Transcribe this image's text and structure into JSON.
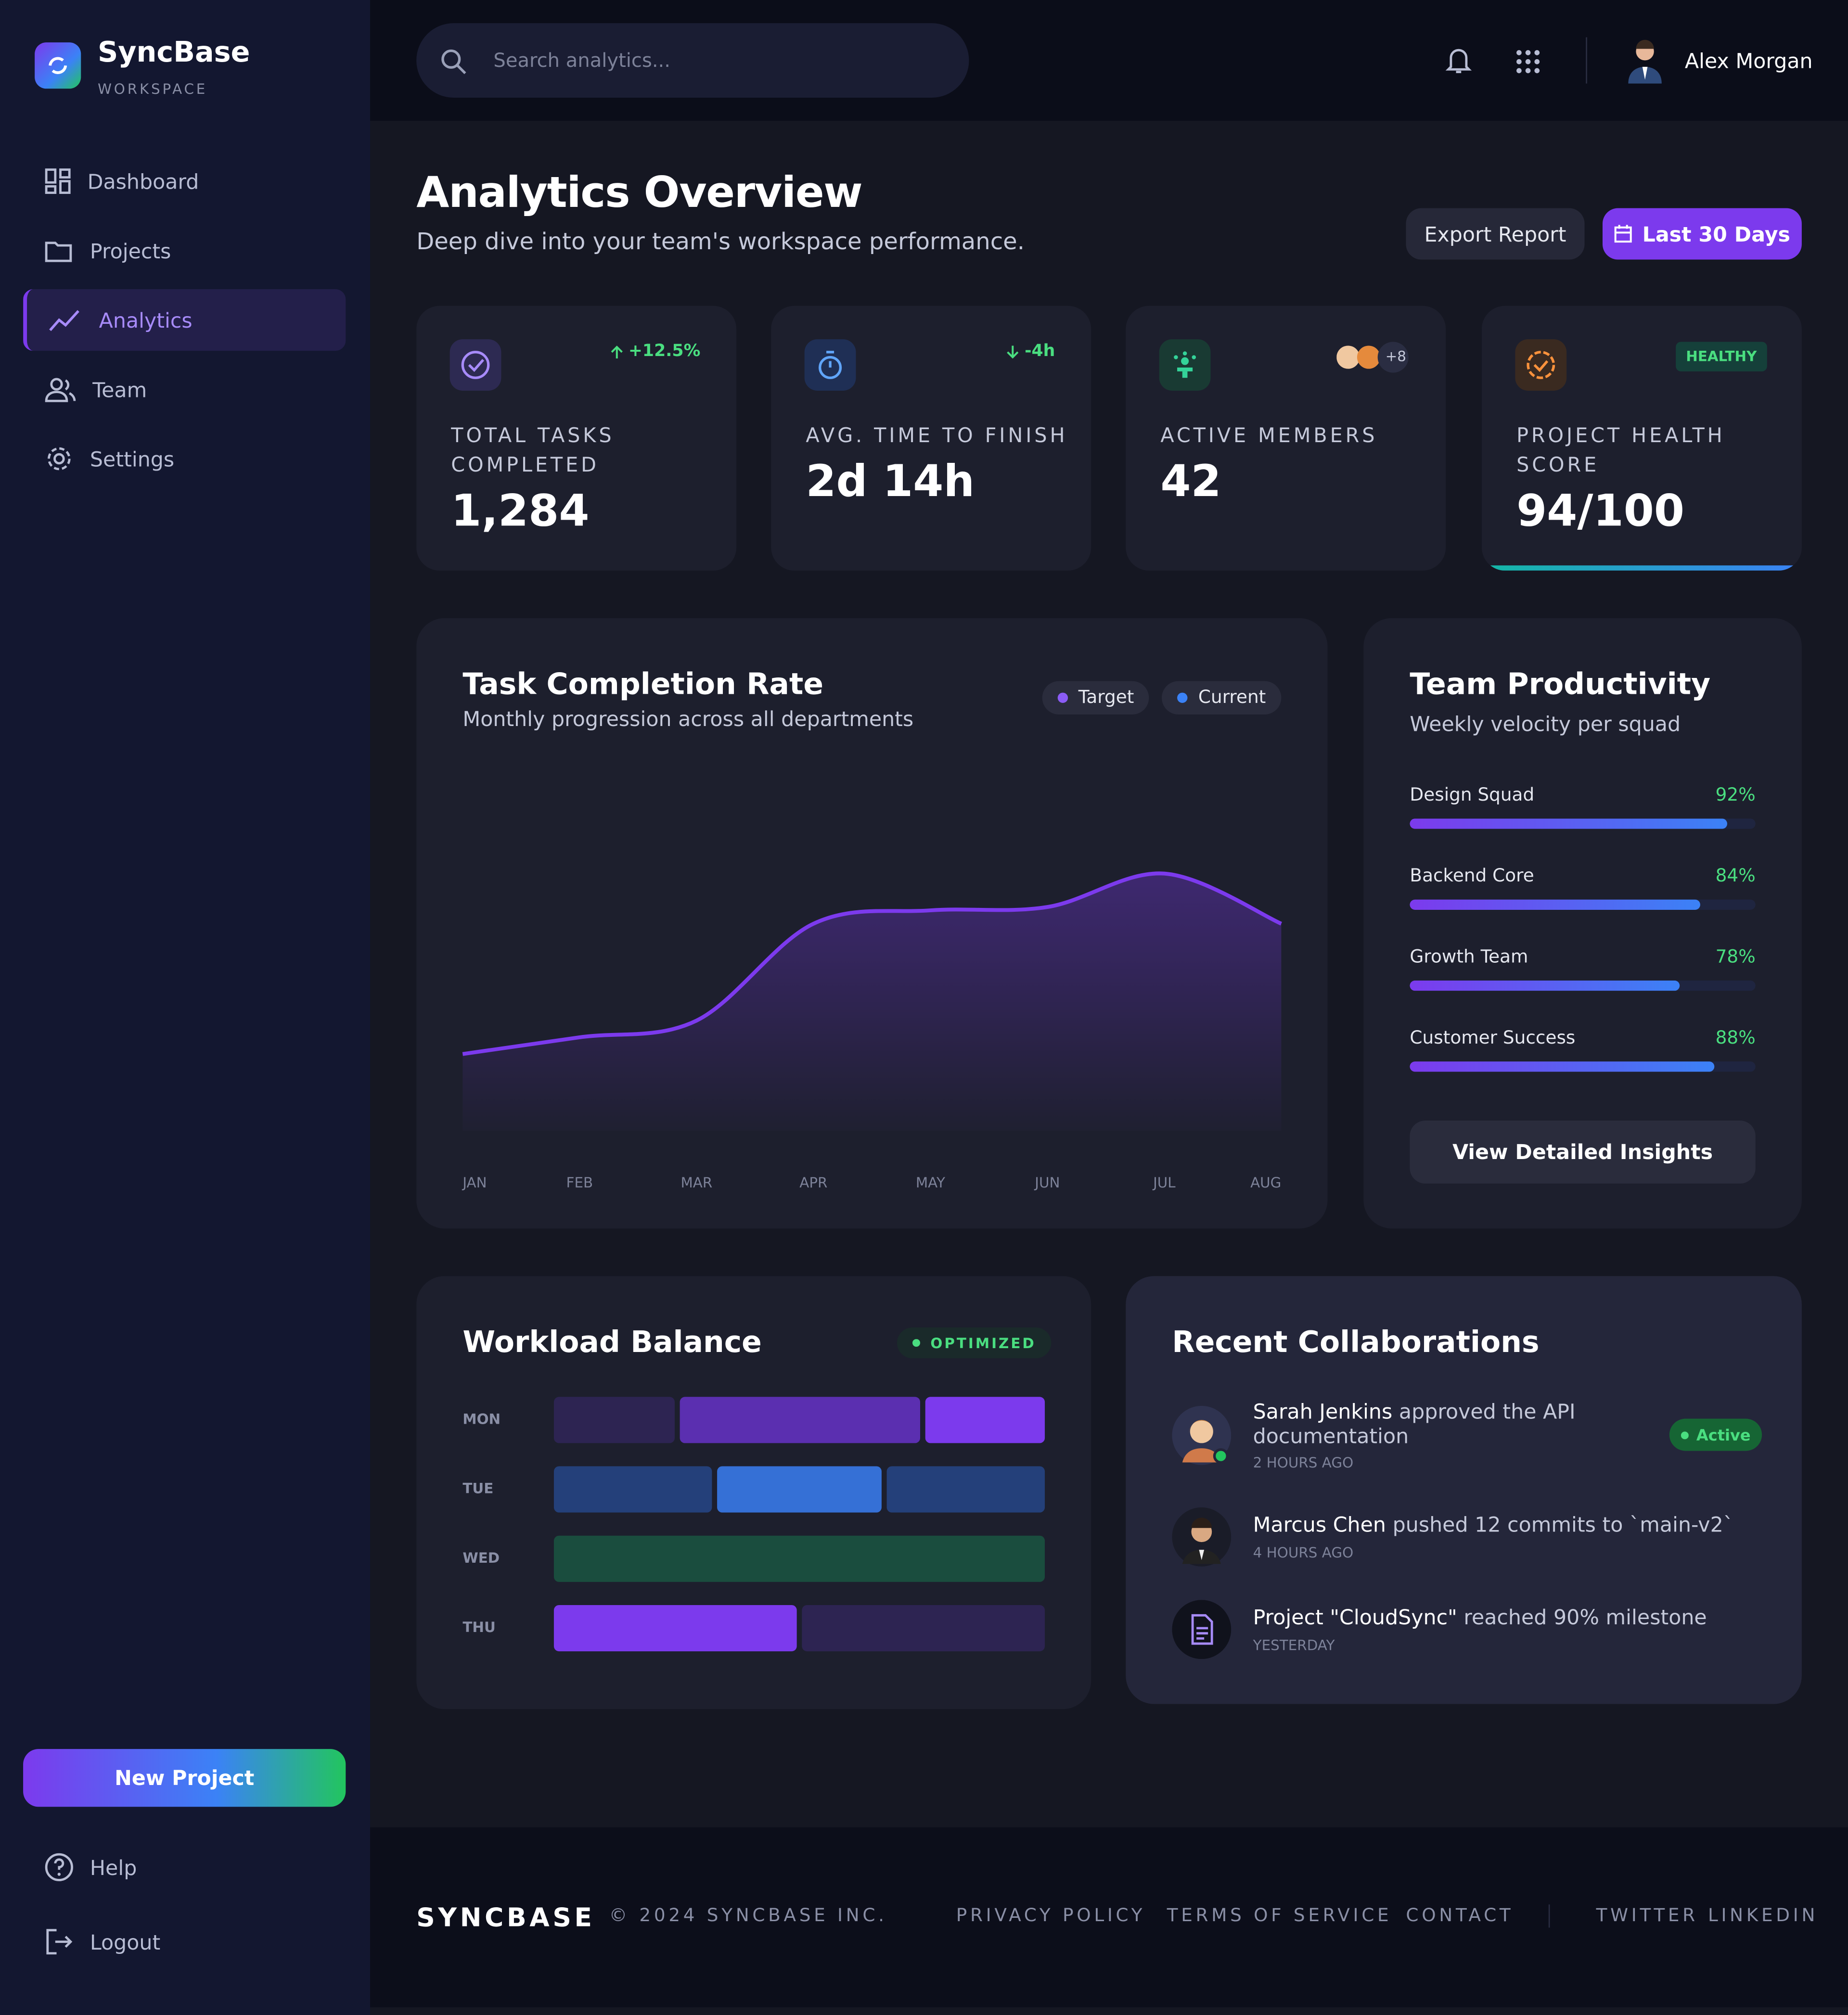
{
  "sidebar": {
    "brand": "SyncBase",
    "workspace": "WORKSPACE",
    "nav": [
      "Dashboard",
      "Projects",
      "Analytics",
      "Team",
      "Settings"
    ],
    "new_project": "New Project",
    "help": "Help",
    "logout": "Logout"
  },
  "header": {
    "search_placeholder": "Search analytics...",
    "user": "Alex Morgan"
  },
  "page": {
    "title": "Analytics Overview",
    "subtitle": "Deep dive into your team's workspace performance.",
    "export": "Export Report",
    "range": "Last 30 Days"
  },
  "stats": [
    {
      "label": "TOTAL TASKS COMPLETED",
      "value": "1,284",
      "badge": "+12.5%"
    },
    {
      "label": "AVG. TIME TO FINISH",
      "value": "2d 14h",
      "badge": "-4h"
    },
    {
      "label": "ACTIVE MEMBERS",
      "value": "42",
      "badge": "+8"
    },
    {
      "label": "PROJECT HEALTH SCORE",
      "value": "94/100",
      "badge": "HEALTHY"
    }
  ],
  "chart_data": {
    "type": "area",
    "title": "Task Completion Rate",
    "subtitle": "Monthly progression across all departments",
    "legend": [
      {
        "name": "Target",
        "color": "#8b5cf6"
      },
      {
        "name": "Current",
        "color": "#3b82f6"
      }
    ],
    "categories": [
      "JAN",
      "FEB",
      "MAR",
      "APR",
      "MAY",
      "JUN",
      "JUL",
      "AUG"
    ],
    "values": [
      23,
      28,
      33,
      62,
      66,
      67,
      77,
      62
    ],
    "color": "#7c3aed",
    "ylim": [
      0,
      100
    ]
  },
  "productivity": {
    "title": "Team Productivity",
    "subtitle": "Weekly velocity per squad",
    "squads": [
      {
        "name": "Design Squad",
        "value": 92,
        "value_label": "92%"
      },
      {
        "name": "Backend Core",
        "value": 84,
        "value_label": "84%"
      },
      {
        "name": "Growth Team",
        "value": 78,
        "value_label": "78%"
      },
      {
        "name": "Customer Success",
        "value": 88,
        "value_label": "88%"
      }
    ],
    "button": "View Detailed Insights"
  },
  "workload": {
    "title": "Workload Balance",
    "badge": "OPTIMIZED",
    "days": [
      {
        "day": "MON",
        "segments": [
          25,
          50,
          25
        ],
        "colors": [
          "#2d2452",
          "#5b2fb0",
          "#7c3aed"
        ]
      },
      {
        "day": "TUE",
        "segments": [
          33,
          34,
          33
        ],
        "colors": [
          "#24407a",
          "#3570d6",
          "#24407a"
        ]
      },
      {
        "day": "WED",
        "segments": [
          100
        ],
        "colors": [
          "#1a4d3e"
        ]
      },
      {
        "day": "THU",
        "segments": [
          50,
          50
        ],
        "colors": [
          "#7c3aed",
          "#2d2452"
        ]
      }
    ]
  },
  "collaborations": {
    "title": "Recent Collaborations",
    "items": [
      {
        "actor": "Sarah Jenkins",
        "action": "approved the API documentation",
        "time": "2 HOURS AGO",
        "status": "Active"
      },
      {
        "actor": "Marcus Chen",
        "action": "pushed 12 commits to `main-v2`",
        "time": "4 HOURS AGO"
      },
      {
        "actor": "Project \"CloudSync\"",
        "action": "reached 90% milestone",
        "time": "YESTERDAY"
      }
    ]
  },
  "footer": {
    "brand": "SYNCBASE",
    "copyright": "© 2024 SYNCBASE INC.",
    "links": [
      "PRIVACY POLICY",
      "TERMS OF SERVICE",
      "CONTACT"
    ],
    "social": [
      "TWITTER",
      "LINKEDIN"
    ]
  }
}
